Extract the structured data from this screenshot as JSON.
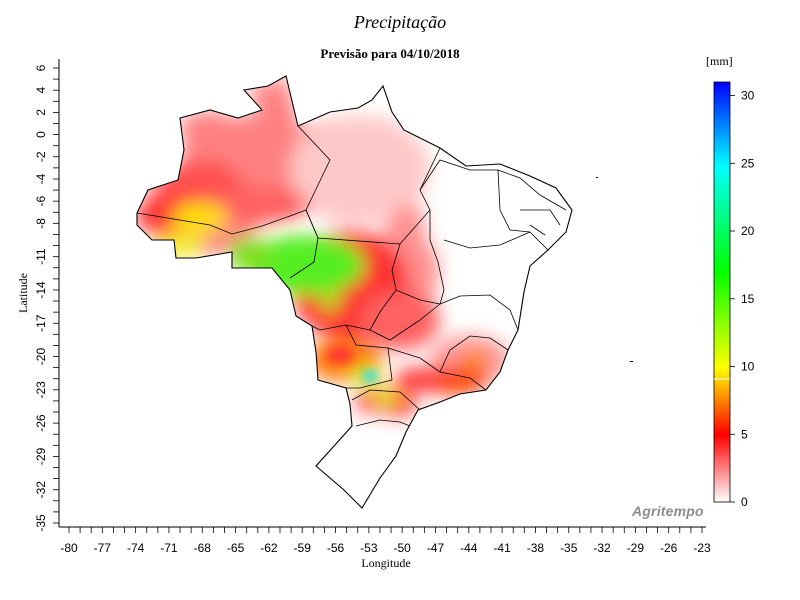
{
  "header": {
    "title": "Precipitação",
    "subtitle": "Previsão para 04/10/2018"
  },
  "axes": {
    "x_label": "Longitude",
    "y_label": "Latitude",
    "x_ticks": [
      -80,
      -77,
      -74,
      -71,
      -68,
      -65,
      -62,
      -59,
      -56,
      -53,
      -50,
      -47,
      -44,
      -41,
      -38,
      -35,
      -32,
      -29,
      -26,
      -23
    ],
    "y_ticks": [
      6,
      4,
      2,
      0,
      -2,
      -4,
      -6,
      -8,
      -11,
      -14,
      -17,
      -20,
      -23,
      -26,
      -29,
      -32,
      -35
    ],
    "x_range": [
      -80,
      -23
    ],
    "y_range": [
      -35,
      6
    ]
  },
  "legend": {
    "unit": "[mm]",
    "ticks": [
      0,
      5,
      10,
      15,
      20,
      25,
      30
    ],
    "range": [
      0,
      31
    ],
    "colors": [
      "#ffffff",
      "#ff0000",
      "#ffff00",
      "#00ff00",
      "#00ffff",
      "#0000ff"
    ]
  },
  "branding": {
    "logo": "Agritempo"
  }
}
